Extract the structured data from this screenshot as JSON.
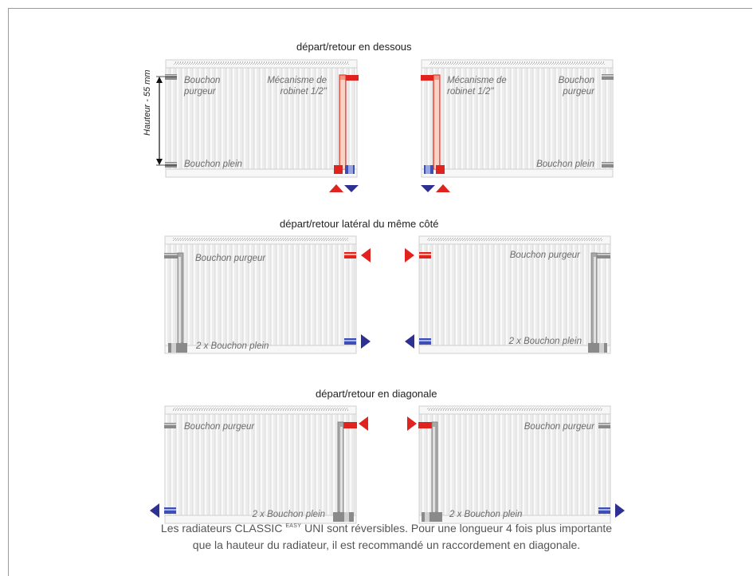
{
  "sections": [
    {
      "heading": "départ/retour en dessous"
    },
    {
      "heading": "départ/retour latéral du même côté"
    },
    {
      "heading": "départ/retour en diagonale"
    }
  ],
  "labels": {
    "bouchon": "Bouchon",
    "purgeur": "purgeur",
    "bouchon_purgeur": "Bouchon purgeur",
    "bouchon_plein": "Bouchon plein",
    "deux_bouchon_plein": "2 x Bouchon plein",
    "mecanisme": "Mécanisme de",
    "robinet": "robinet 1/2\"",
    "hauteur": "Hauteur - 55 mm"
  },
  "footer": {
    "line1_before": "Les radiateurs CLASSIC",
    "line1_sup": "EASY",
    "line1_after": "UNI sont réversibles. Pour une longueur 4 fois plus importante",
    "line2": "que la hauteur du radiateur, il est recommandé un raccordement en diagonale."
  },
  "colors": {
    "flow_red": "#e0231f",
    "return_blue": "#2e3191",
    "pipe_red": "#f08a6c",
    "radiator_fin": "#e6e6e6",
    "radiator_line": "#c9c9c9"
  }
}
